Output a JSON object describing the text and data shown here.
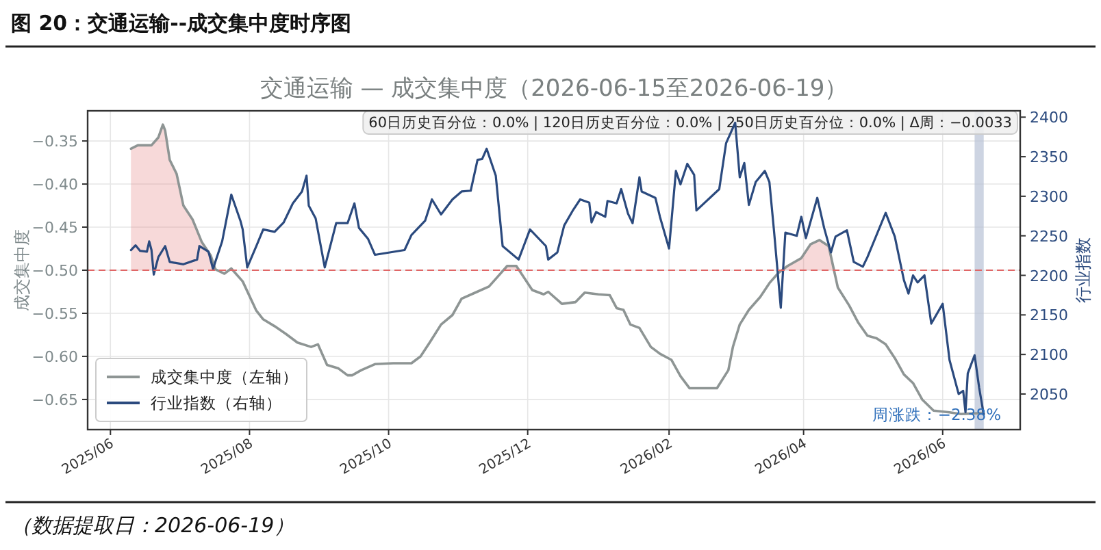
{
  "chart_data": {
    "type": "line",
    "title": "图 20：交通运输--成交集中度时序图",
    "subtitle": "交通运输 — 成交集中度（2026-06-15至2026-06-19）",
    "ylabel": "成交集中度",
    "y2label": "行业指数",
    "annotations": [
      "60日历史百分位：0.0% | 120日历史百分位：0.0% | 250日历史百分位：0.0% | Δ周：−0.0033",
      "周涨跌：−2.38%",
      "（数据提取日：2026-06-19）"
    ],
    "xlim": [
      "2025-05-22",
      "2026-07-05"
    ],
    "xticks": [
      {
        "value": "2025-06-01",
        "label": "2025/06"
      },
      {
        "value": "2025-08-01",
        "label": "2025/08"
      },
      {
        "value": "2025-10-01",
        "label": "2025/10"
      },
      {
        "value": "2025-12-01",
        "label": "2025/12"
      },
      {
        "value": "2026-02-01",
        "label": "2026/02"
      },
      {
        "value": "2026-04-01",
        "label": "2026/04"
      },
      {
        "value": "2026-06-01",
        "label": "2026/06"
      }
    ],
    "ylim": [
      -0.685,
      -0.315
    ],
    "yticks": [
      {
        "value": -0.35,
        "label": "−0.35"
      },
      {
        "value": -0.4,
        "label": "−0.40"
      },
      {
        "value": -0.45,
        "label": "−0.45"
      },
      {
        "value": -0.5,
        "label": "−0.50"
      },
      {
        "value": -0.55,
        "label": "−0.55"
      },
      {
        "value": -0.6,
        "label": "−0.60"
      },
      {
        "value": -0.65,
        "label": "−0.65"
      }
    ],
    "y2lim": [
      2005,
      2408
    ],
    "y2ticks": [
      2050,
      2100,
      2150,
      2200,
      2250,
      2300,
      2350,
      2400
    ],
    "grid": true,
    "legend": "bottom left",
    "ref_lines": [
      {
        "axis": "y",
        "value": -0.5,
        "color": "#e06666",
        "line_style": "dashed"
      }
    ],
    "bands": [
      {
        "axis": "x",
        "from": "2026-06-15",
        "to": "2026-06-19",
        "color": "#b8c2d6"
      }
    ],
    "series": [
      {
        "name": "成交集中度（左轴）",
        "color": "#8e9594",
        "axis": "y",
        "x": [
          "2025-06-10",
          "2025-06-13",
          "2025-06-19",
          "2025-06-22",
          "2025-06-24",
          "2025-06-25",
          "2025-06-27",
          "2025-06-30",
          "2025-07-03",
          "2025-07-07",
          "2025-07-11",
          "2025-07-15",
          "2025-07-17",
          "2025-07-21",
          "2025-07-24",
          "2025-07-29",
          "2025-08-04",
          "2025-08-07",
          "2025-08-12",
          "2025-08-17",
          "2025-08-22",
          "2025-08-28",
          "2025-08-31",
          "2025-09-04",
          "2025-09-09",
          "2025-09-13",
          "2025-09-15",
          "2025-09-19",
          "2025-09-25",
          "2025-10-03",
          "2025-10-11",
          "2025-10-15",
          "2025-10-19",
          "2025-10-24",
          "2025-10-29",
          "2025-11-02",
          "2025-11-08",
          "2025-11-14",
          "2025-11-18",
          "2025-11-22",
          "2025-11-26",
          "2025-12-03",
          "2025-12-08",
          "2025-12-10",
          "2025-12-16",
          "2025-12-22",
          "2025-12-26",
          "2026-01-01",
          "2026-01-06",
          "2026-01-09",
          "2026-01-12",
          "2026-01-15",
          "2026-01-19",
          "2026-01-24",
          "2026-01-28",
          "2026-02-02",
          "2026-02-06",
          "2026-02-10",
          "2026-02-22",
          "2026-02-27",
          "2026-03-01",
          "2026-03-04",
          "2026-03-08",
          "2026-03-13",
          "2026-03-17",
          "2026-03-21",
          "2026-03-25",
          "2026-03-31",
          "2026-04-04",
          "2026-04-08",
          "2026-04-12",
          "2026-04-16",
          "2026-04-21",
          "2026-04-25",
          "2026-04-29",
          "2026-05-03",
          "2026-05-07",
          "2026-05-11",
          "2026-05-15",
          "2026-05-19",
          "2026-05-23",
          "2026-05-28",
          "2026-06-04",
          "2026-06-09",
          "2026-06-16",
          "2026-06-19"
        ],
        "values": [
          -0.359,
          -0.355,
          -0.355,
          -0.346,
          -0.331,
          -0.338,
          -0.372,
          -0.388,
          -0.425,
          -0.441,
          -0.467,
          -0.483,
          -0.499,
          -0.504,
          -0.498,
          -0.513,
          -0.547,
          -0.557,
          -0.565,
          -0.574,
          -0.584,
          -0.589,
          -0.586,
          -0.61,
          -0.614,
          -0.622,
          -0.622,
          -0.616,
          -0.609,
          -0.608,
          -0.608,
          -0.6,
          -0.584,
          -0.563,
          -0.552,
          -0.533,
          -0.526,
          -0.519,
          -0.507,
          -0.495,
          -0.495,
          -0.523,
          -0.528,
          -0.525,
          -0.539,
          -0.537,
          -0.526,
          -0.528,
          -0.529,
          -0.544,
          -0.546,
          -0.563,
          -0.567,
          -0.589,
          -0.597,
          -0.604,
          -0.623,
          -0.637,
          -0.637,
          -0.616,
          -0.589,
          -0.563,
          -0.546,
          -0.531,
          -0.515,
          -0.503,
          -0.495,
          -0.486,
          -0.47,
          -0.465,
          -0.472,
          -0.52,
          -0.541,
          -0.561,
          -0.576,
          -0.579,
          -0.586,
          -0.602,
          -0.621,
          -0.631,
          -0.65,
          -0.663,
          -0.665,
          -0.667,
          -0.666,
          -0.666
        ]
      },
      {
        "name": "行业指数（右轴）",
        "color": "#2b4a7e",
        "axis": "y2",
        "x": [
          "2025-06-10",
          "2025-06-12",
          "2025-06-14",
          "2025-06-17",
          "2025-06-18",
          "2025-06-19",
          "2025-06-20",
          "2025-06-22",
          "2025-06-25",
          "2025-06-27",
          "2025-07-03",
          "2025-07-09",
          "2025-07-10",
          "2025-07-14",
          "2025-07-16",
          "2025-07-17",
          "2025-07-20",
          "2025-07-24",
          "2025-07-28",
          "2025-07-29",
          "2025-07-31",
          "2025-08-04",
          "2025-08-07",
          "2025-08-12",
          "2025-08-16",
          "2025-08-20",
          "2025-08-24",
          "2025-08-26",
          "2025-08-27",
          "2025-08-30",
          "2025-09-03",
          "2025-09-08",
          "2025-09-13",
          "2025-09-16",
          "2025-09-18",
          "2025-09-22",
          "2025-09-25",
          "2025-10-08",
          "2025-10-11",
          "2025-10-14",
          "2025-10-17",
          "2025-10-20",
          "2025-10-24",
          "2025-10-29",
          "2025-11-02",
          "2025-11-06",
          "2025-11-09",
          "2025-11-11",
          "2025-11-13",
          "2025-11-17",
          "2025-11-20",
          "2025-11-27",
          "2025-12-02",
          "2025-12-09",
          "2025-12-10",
          "2025-12-14",
          "2025-12-17",
          "2025-12-21",
          "2025-12-24",
          "2025-12-28",
          "2025-12-29",
          "2025-12-31",
          "2026-01-04",
          "2026-01-05",
          "2026-01-09",
          "2026-01-11",
          "2026-01-14",
          "2026-01-16",
          "2026-01-19",
          "2026-01-20",
          "2026-01-26",
          "2026-01-28",
          "2026-02-01",
          "2026-02-04",
          "2026-02-06",
          "2026-02-09",
          "2026-02-12",
          "2026-02-13",
          "2026-02-23",
          "2026-02-26",
          "2026-03-02",
          "2026-03-04",
          "2026-03-06",
          "2026-03-08",
          "2026-03-11",
          "2026-03-15",
          "2026-03-17",
          "2026-03-19",
          "2026-03-22",
          "2026-03-24",
          "2026-03-29",
          "2026-03-31",
          "2026-04-02",
          "2026-04-07",
          "2026-04-10",
          "2026-04-13",
          "2026-04-15",
          "2026-04-20",
          "2026-04-23",
          "2026-04-27",
          "2026-04-29",
          "2026-05-07",
          "2026-05-11",
          "2026-05-15",
          "2026-05-17",
          "2026-05-19",
          "2026-05-21",
          "2026-05-24",
          "2026-05-27",
          "2026-06-01",
          "2026-06-04",
          "2026-06-08",
          "2026-06-10",
          "2026-06-11",
          "2026-06-12",
          "2026-06-15",
          "2026-06-17",
          "2026-06-19"
        ],
        "values": [
          2232,
          2238,
          2231,
          2230,
          2243,
          2232,
          2201,
          2223,
          2237,
          2217,
          2214,
          2220,
          2237,
          2230,
          2208,
          2217,
          2243,
          2302,
          2269,
          2258,
          2210,
          2237,
          2258,
          2255,
          2267,
          2291,
          2306,
          2326,
          2288,
          2272,
          2210,
          2266,
          2266,
          2291,
          2260,
          2246,
          2226,
          2232,
          2251,
          2260,
          2269,
          2296,
          2277,
          2296,
          2306,
          2307,
          2346,
          2347,
          2360,
          2326,
          2237,
          2220,
          2258,
          2237,
          2220,
          2229,
          2263,
          2283,
          2296,
          2292,
          2267,
          2280,
          2274,
          2294,
          2291,
          2309,
          2278,
          2266,
          2324,
          2306,
          2298,
          2274,
          2234,
          2332,
          2315,
          2341,
          2327,
          2282,
          2309,
          2367,
          2393,
          2324,
          2342,
          2289,
          2318,
          2332,
          2318,
          2257,
          2159,
          2254,
          2250,
          2274,
          2247,
          2298,
          2260,
          2229,
          2249,
          2257,
          2217,
          2211,
          2223,
          2279,
          2249,
          2194,
          2177,
          2200,
          2191,
          2200,
          2139,
          2164,
          2093,
          2050,
          2054,
          2027,
          2076,
          2099,
          2058,
          2024
        ]
      }
    ]
  }
}
